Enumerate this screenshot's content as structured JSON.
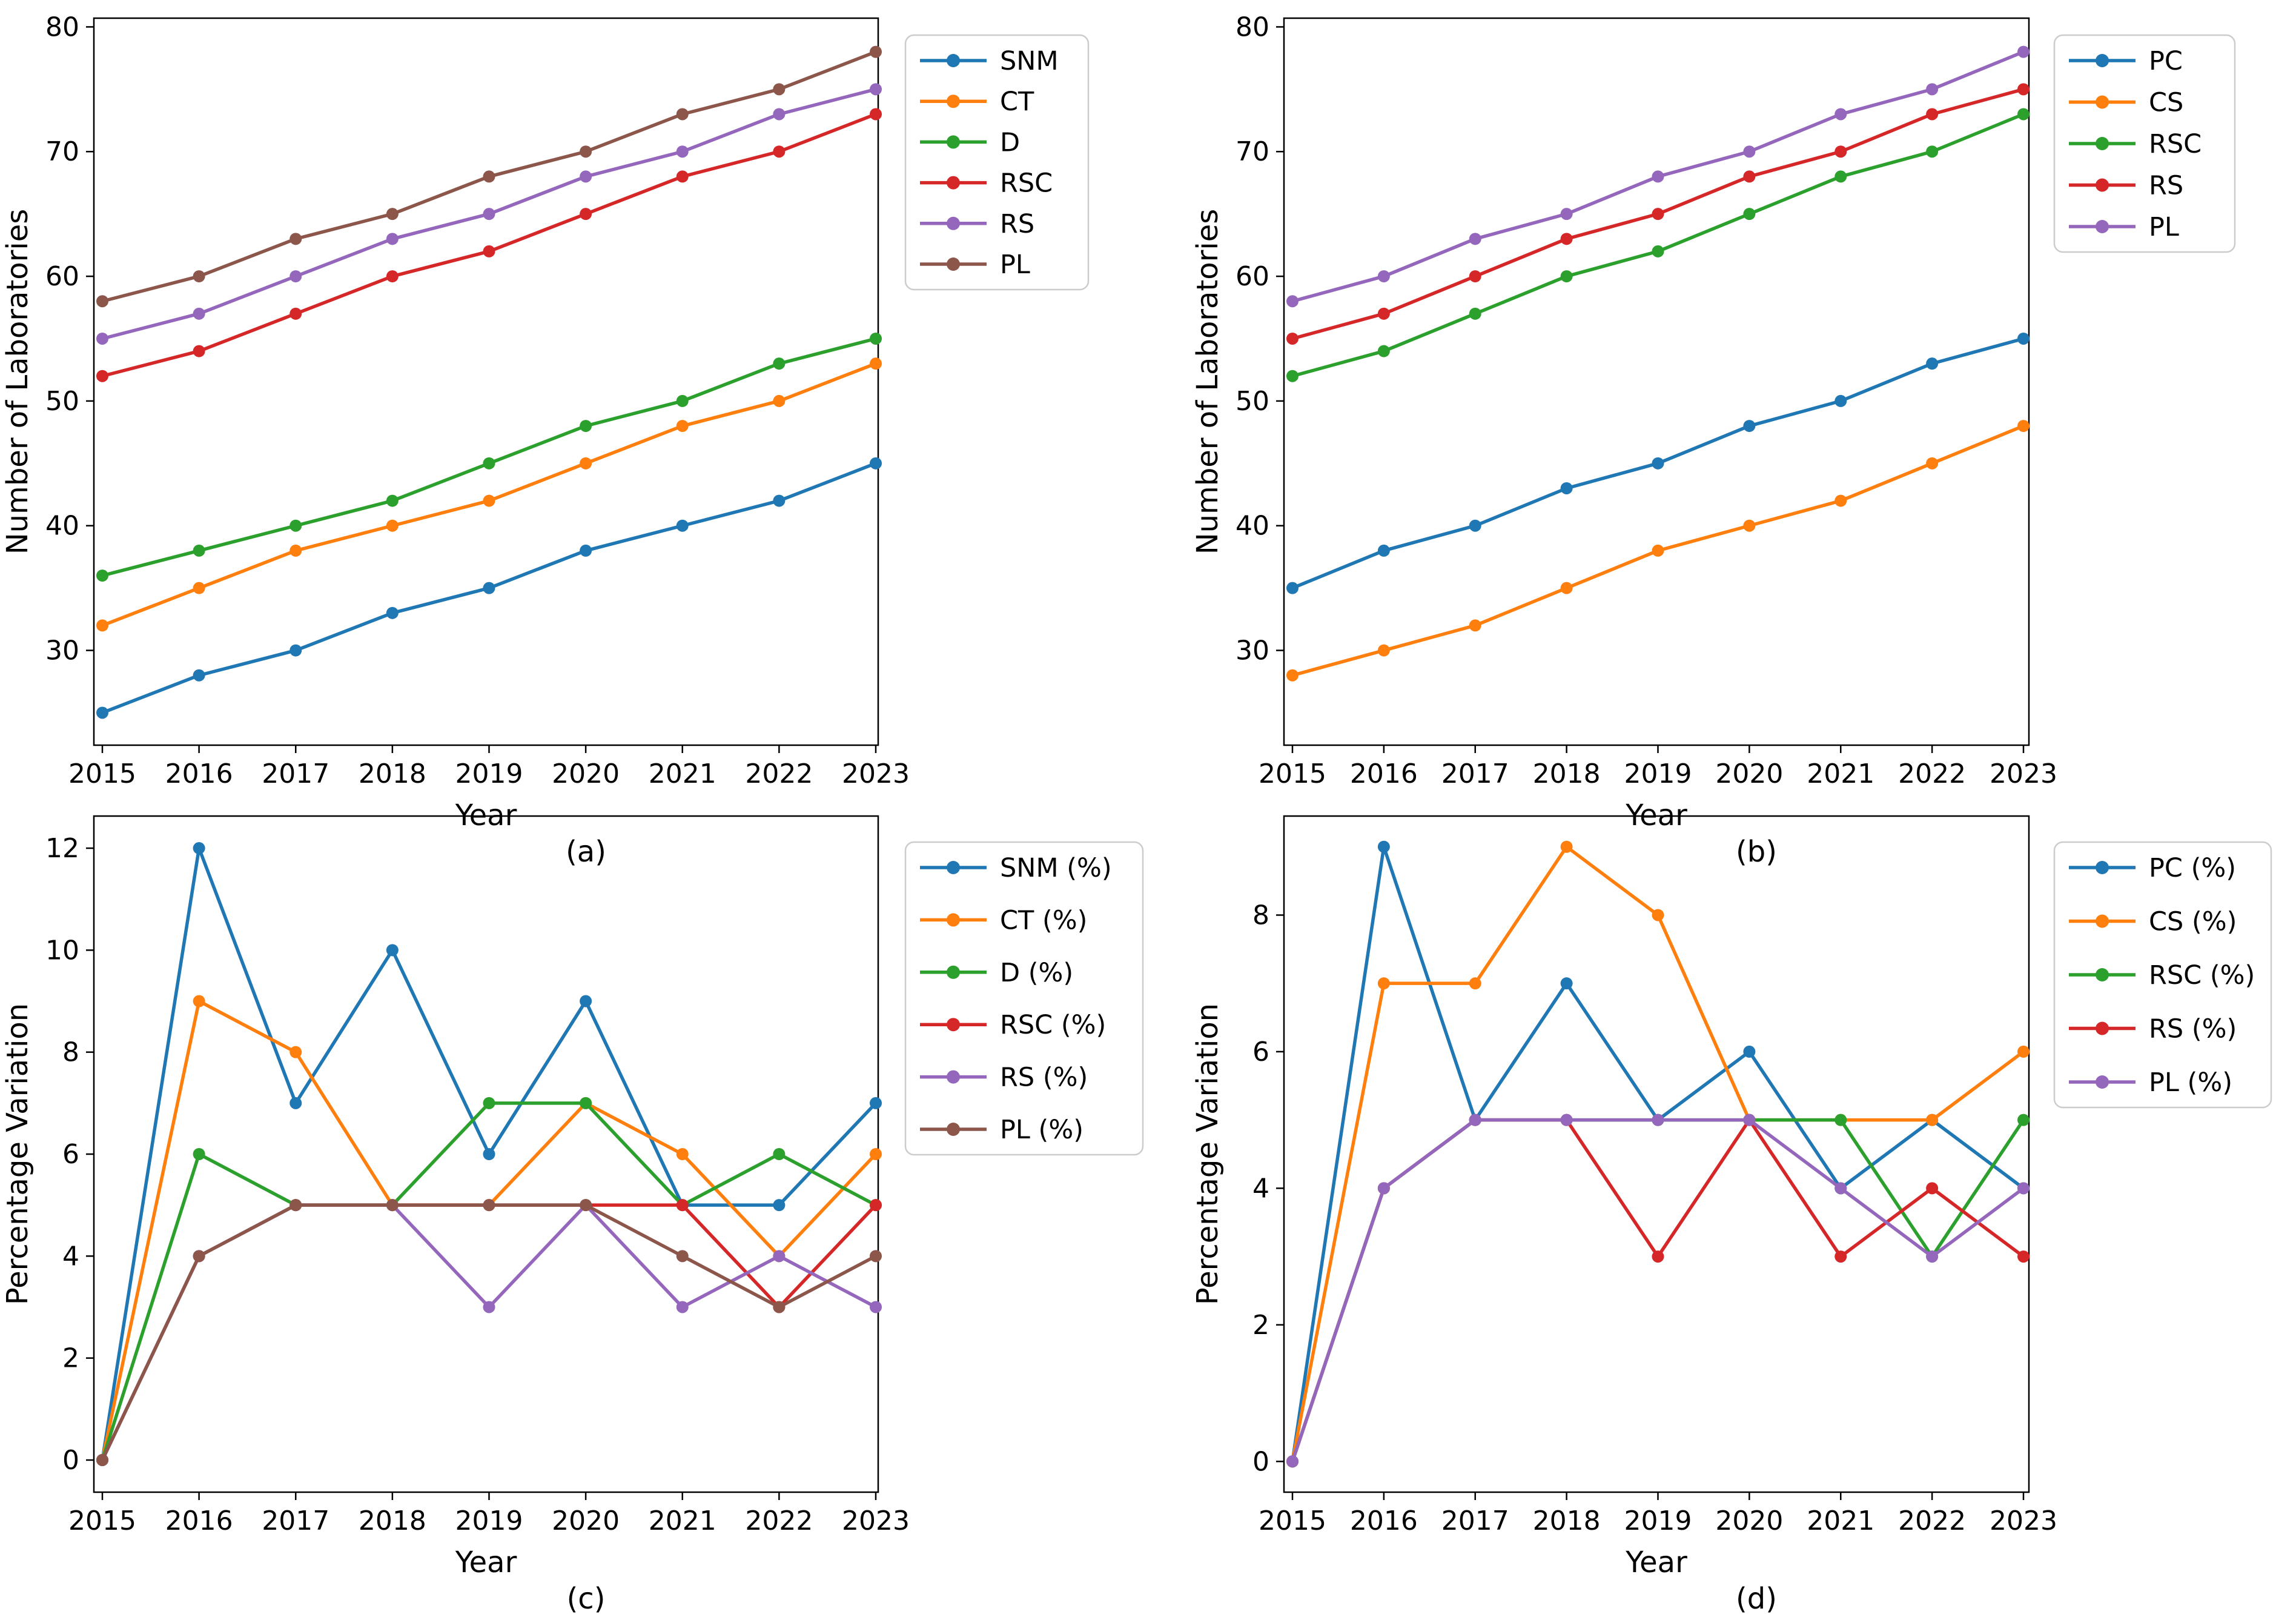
{
  "figure": {
    "background": "#ffffff",
    "text_color": "#000000",
    "legend_border_color": "#cccccc"
  },
  "chart_data": [
    {
      "id": "a",
      "type": "line",
      "caption": "(a)",
      "xlabel": "Year",
      "ylabel": "Number of Laboratories",
      "categories": [
        "2015",
        "2016",
        "2017",
        "2018",
        "2019",
        "2020",
        "2021",
        "2022",
        "2023"
      ],
      "yticks": [
        30,
        40,
        50,
        60,
        70,
        80
      ],
      "ylim": [
        22.4,
        80.7
      ],
      "grid": false,
      "legend_position": "outside upper right",
      "series": [
        {
          "name": "SNM",
          "color": "#1f77b4",
          "values": [
            25,
            28,
            30,
            33,
            35,
            38,
            40,
            42,
            45
          ]
        },
        {
          "name": "CT",
          "color": "#ff7f0e",
          "values": [
            32,
            35,
            38,
            40,
            42,
            45,
            48,
            50,
            53
          ]
        },
        {
          "name": "D",
          "color": "#2ca02c",
          "values": [
            36,
            38,
            40,
            42,
            45,
            48,
            50,
            53,
            55
          ]
        },
        {
          "name": "RSC",
          "color": "#d62728",
          "values": [
            52,
            54,
            57,
            60,
            62,
            65,
            68,
            70,
            73
          ]
        },
        {
          "name": "RS",
          "color": "#9467bd",
          "values": [
            55,
            57,
            60,
            63,
            65,
            68,
            70,
            73,
            75
          ]
        },
        {
          "name": "PL",
          "color": "#8c564b",
          "values": [
            58,
            60,
            63,
            65,
            68,
            70,
            73,
            75,
            78
          ]
        }
      ]
    },
    {
      "id": "b",
      "type": "line",
      "caption": "(b)",
      "xlabel": "Year",
      "ylabel": "Number of Laboratories",
      "categories": [
        "2015",
        "2016",
        "2017",
        "2018",
        "2019",
        "2020",
        "2021",
        "2022",
        "2023"
      ],
      "yticks": [
        30,
        40,
        50,
        60,
        70,
        80
      ],
      "ylim": [
        22.4,
        80.7
      ],
      "grid": false,
      "legend_position": "outside upper right",
      "series": [
        {
          "name": "PC",
          "color": "#1f77b4",
          "values": [
            35,
            38,
            40,
            43,
            45,
            48,
            50,
            53,
            55
          ]
        },
        {
          "name": "CS",
          "color": "#ff7f0e",
          "values": [
            28,
            30,
            32,
            35,
            38,
            40,
            42,
            45,
            48
          ]
        },
        {
          "name": "RSC",
          "color": "#2ca02c",
          "values": [
            52,
            54,
            57,
            60,
            62,
            65,
            68,
            70,
            73
          ]
        },
        {
          "name": "RS",
          "color": "#d62728",
          "values": [
            55,
            57,
            60,
            63,
            65,
            68,
            70,
            73,
            75
          ]
        },
        {
          "name": "PL",
          "color": "#9467bd",
          "values": [
            58,
            60,
            63,
            65,
            68,
            70,
            73,
            75,
            78
          ]
        }
      ]
    },
    {
      "id": "c",
      "type": "line",
      "caption": "(c)",
      "xlabel": "Year",
      "ylabel": "Percentage Variation",
      "categories": [
        "2015",
        "2016",
        "2017",
        "2018",
        "2019",
        "2020",
        "2021",
        "2022",
        "2023"
      ],
      "yticks": [
        0,
        2,
        4,
        6,
        8,
        10,
        12
      ],
      "ylim": [
        -0.63,
        12.63
      ],
      "grid": false,
      "legend_position": "outside upper right",
      "series": [
        {
          "name": "SNM (%)",
          "color": "#1f77b4",
          "values": [
            0,
            12,
            7,
            10,
            6,
            9,
            5,
            5,
            7
          ]
        },
        {
          "name": "CT (%)",
          "color": "#ff7f0e",
          "values": [
            0,
            9,
            8,
            5,
            5,
            7,
            6,
            4,
            6
          ]
        },
        {
          "name": "D (%)",
          "color": "#2ca02c",
          "values": [
            0,
            6,
            5,
            5,
            7,
            7,
            5,
            6,
            5
          ]
        },
        {
          "name": "RSC (%)",
          "color": "#d62728",
          "values": [
            0,
            4,
            5,
            5,
            5,
            5,
            5,
            3,
            5
          ]
        },
        {
          "name": "RS (%)",
          "color": "#9467bd",
          "values": [
            0,
            4,
            5,
            5,
            3,
            5,
            3,
            4,
            3
          ]
        },
        {
          "name": "PL (%)",
          "color": "#8c564b",
          "values": [
            0,
            4,
            5,
            5,
            5,
            5,
            4,
            3,
            4
          ]
        }
      ]
    },
    {
      "id": "d",
      "type": "line",
      "caption": "(d)",
      "xlabel": "Year",
      "ylabel": "Percentage Variation",
      "categories": [
        "2015",
        "2016",
        "2017",
        "2018",
        "2019",
        "2020",
        "2021",
        "2022",
        "2023"
      ],
      "yticks": [
        0,
        2,
        4,
        6,
        8
      ],
      "ylim": [
        -0.45,
        9.45
      ],
      "grid": false,
      "legend_position": "outside upper right",
      "series": [
        {
          "name": "PC (%)",
          "color": "#1f77b4",
          "values": [
            0,
            9,
            5,
            7,
            5,
            6,
            4,
            5,
            4
          ]
        },
        {
          "name": "CS (%)",
          "color": "#ff7f0e",
          "values": [
            0,
            7,
            7,
            9,
            8,
            5,
            5,
            5,
            6
          ]
        },
        {
          "name": "RSC (%)",
          "color": "#2ca02c",
          "values": [
            0,
            4,
            5,
            5,
            5,
            5,
            5,
            3,
            5
          ]
        },
        {
          "name": "RS (%)",
          "color": "#d62728",
          "values": [
            0,
            4,
            5,
            5,
            3,
            5,
            3,
            4,
            3
          ]
        },
        {
          "name": "PL (%)",
          "color": "#9467bd",
          "values": [
            0,
            4,
            5,
            5,
            5,
            5,
            4,
            3,
            4
          ]
        }
      ]
    }
  ]
}
